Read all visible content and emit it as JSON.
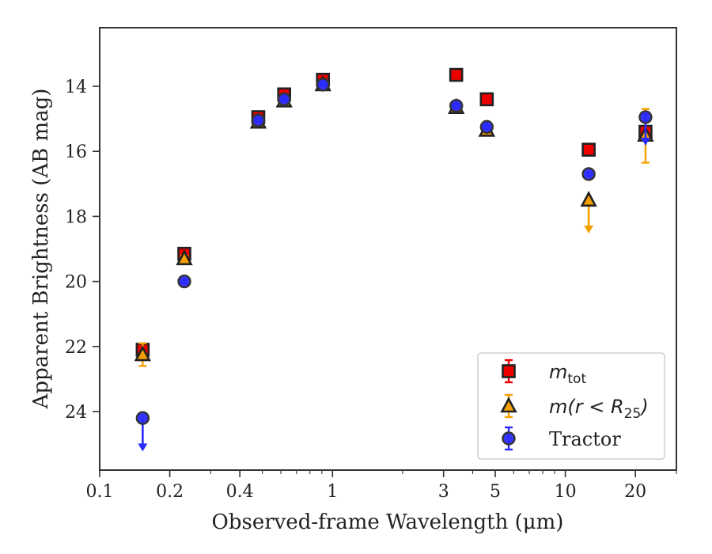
{
  "chart_data": {
    "type": "scatter",
    "xlabel": "Observed-frame Wavelength (μm)",
    "ylabel": "Apparent Brightness (AB mag)",
    "x_scale": "log",
    "xlim": [
      0.1,
      30
    ],
    "ylim": [
      25.8,
      12.2
    ],
    "y_inverted": true,
    "x_ticks": [
      {
        "value": 0.1,
        "label": "0.1"
      },
      {
        "value": 0.2,
        "label": "0.2"
      },
      {
        "value": 0.4,
        "label": "0.4"
      },
      {
        "value": 1,
        "label": "1"
      },
      {
        "value": 3,
        "label": "3"
      },
      {
        "value": 5,
        "label": "5"
      },
      {
        "value": 10,
        "label": "10"
      },
      {
        "value": 20,
        "label": "20"
      }
    ],
    "y_ticks": [
      {
        "value": 14,
        "label": "14"
      },
      {
        "value": 16,
        "label": "16"
      },
      {
        "value": 18,
        "label": "18"
      },
      {
        "value": 20,
        "label": "20"
      },
      {
        "value": 22,
        "label": "22"
      },
      {
        "value": 24,
        "label": "24"
      }
    ],
    "grid": false,
    "legend_position": "lower-right",
    "series": [
      {
        "name": "m_tot",
        "marker": "square",
        "color": "#ee0000",
        "points": [
          {
            "x": 0.153,
            "y": 22.1,
            "err": 0.1
          },
          {
            "x": 0.231,
            "y": 19.15,
            "err": 0.1
          },
          {
            "x": 0.48,
            "y": 14.95,
            "err": 0.05
          },
          {
            "x": 0.62,
            "y": 14.25,
            "err": 0.05
          },
          {
            "x": 0.91,
            "y": 13.8,
            "err": 0.05
          },
          {
            "x": 3.4,
            "y": 13.65,
            "err": 0.05
          },
          {
            "x": 4.6,
            "y": 14.4,
            "err": 0.05
          },
          {
            "x": 12.6,
            "y": 15.95,
            "err": 0.05
          },
          {
            "x": 22.1,
            "y": 15.4,
            "err": 0.1
          }
        ]
      },
      {
        "name": "m(r<R_25)",
        "marker": "triangle",
        "color": "#f5a000",
        "points": [
          {
            "x": 0.153,
            "y": 22.25,
            "err": 0.35
          },
          {
            "x": 0.231,
            "y": 19.3,
            "err": 0.1
          },
          {
            "x": 0.48,
            "y": 15.1,
            "err": 0.05
          },
          {
            "x": 0.62,
            "y": 14.45,
            "err": 0.05
          },
          {
            "x": 0.91,
            "y": 13.95,
            "err": 0.05
          },
          {
            "x": 3.4,
            "y": 14.65,
            "err": 0.05
          },
          {
            "x": 4.6,
            "y": 15.35,
            "err": 0.05
          },
          {
            "x": 12.6,
            "y": 17.5,
            "upper_limit": true,
            "arrow_to": 18.5
          },
          {
            "x": 22.1,
            "y": 15.5,
            "err_low": 0.8,
            "err_high": 0.85
          }
        ]
      },
      {
        "name": "Tractor",
        "marker": "circle",
        "color": "#2a2aff",
        "points": [
          {
            "x": 0.153,
            "y": 24.2,
            "upper_limit": true,
            "arrow_to": 25.2
          },
          {
            "x": 0.231,
            "y": 20.0,
            "err": 0.05
          },
          {
            "x": 0.48,
            "y": 15.05,
            "err": 0.05
          },
          {
            "x": 0.62,
            "y": 14.4,
            "err": 0.05
          },
          {
            "x": 0.91,
            "y": 13.95,
            "err": 0.05
          },
          {
            "x": 3.4,
            "y": 14.6,
            "err": 0.05
          },
          {
            "x": 4.6,
            "y": 15.25,
            "err": 0.05
          },
          {
            "x": 12.6,
            "y": 16.7,
            "err": 0.05
          },
          {
            "x": 22.1,
            "y": 14.95,
            "err": 0.1,
            "extra_arrow_to": 15.8
          }
        ]
      }
    ]
  },
  "legend": {
    "entries": [
      {
        "symbol": "m",
        "sub": "tot",
        "tail": ""
      },
      {
        "symbol": "m",
        "sub": "",
        "tail": "(r < R",
        "sub2": "25",
        "tail2": ")"
      },
      {
        "text": "Tractor"
      }
    ]
  }
}
